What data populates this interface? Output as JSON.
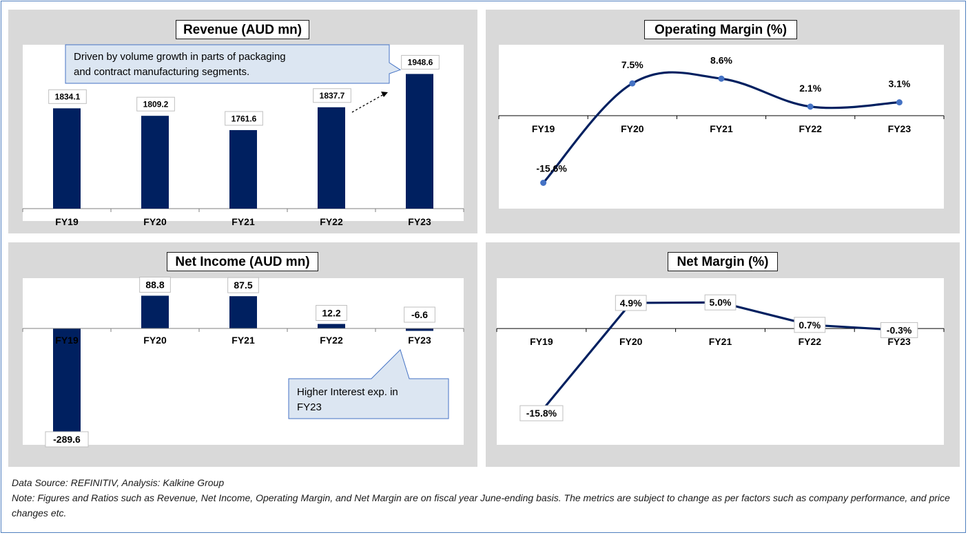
{
  "colors": {
    "bar": "#002060",
    "line": "#002060",
    "marker": "#4472c4",
    "callout_fill": "#dce6f2",
    "callout_border": "#4472c4"
  },
  "chart_data": [
    {
      "id": "revenue",
      "type": "bar",
      "title": "Revenue (AUD mn)",
      "categories": [
        "FY19",
        "FY20",
        "FY21",
        "FY22",
        "FY23"
      ],
      "values": [
        1834.1,
        1809.2,
        1761.6,
        1837.7,
        1948.6
      ],
      "labels": [
        "1834.1",
        "1809.2",
        "1761.6",
        "1837.7",
        "1948.6"
      ],
      "ylim": [
        1500,
        2000
      ],
      "annotation": "Driven by volume growth in parts of packaging and contract manufacturing segments."
    },
    {
      "id": "operating_margin",
      "type": "line",
      "title": "Operating Margin (%)",
      "categories": [
        "FY19",
        "FY20",
        "FY21",
        "FY22",
        "FY23"
      ],
      "values": [
        -15.6,
        7.5,
        8.6,
        2.1,
        3.1
      ],
      "labels": [
        "-15.6%",
        "7.5%",
        "8.6%",
        "2.1%",
        "3.1%"
      ],
      "ylim": [
        -20,
        12
      ]
    },
    {
      "id": "net_income",
      "type": "bar",
      "title": "Net Income (AUD mn)",
      "categories": [
        "FY19",
        "FY20",
        "FY21",
        "FY22",
        "FY23"
      ],
      "values": [
        -289.6,
        88.8,
        87.5,
        12.2,
        -6.6
      ],
      "labels": [
        "-289.6",
        "88.8",
        "87.5",
        "12.2",
        "-6.6"
      ],
      "ylim": [
        -350,
        150
      ],
      "annotation": "Higher Interest exp. in FY23"
    },
    {
      "id": "net_margin",
      "type": "line",
      "title": "Net Margin (%)",
      "categories": [
        "FY19",
        "FY20",
        "FY21",
        "FY22",
        "FY23"
      ],
      "values": [
        -15.8,
        4.9,
        5.0,
        0.7,
        -0.3
      ],
      "labels": [
        "-15.8%",
        "4.9%",
        "5.0%",
        "0.7%",
        "-0.3%"
      ],
      "ylim": [
        -20,
        7
      ]
    }
  ],
  "notes": {
    "source": "Data Source: REFINITIV, Analysis: Kalkine Group",
    "note": "Note: Figures and Ratios such as Revenue, Net Income, Operating Margin, and Net Margin are on fiscal year June-ending basis. The metrics are subject to change as per factors such as company performance, and price changes etc."
  }
}
